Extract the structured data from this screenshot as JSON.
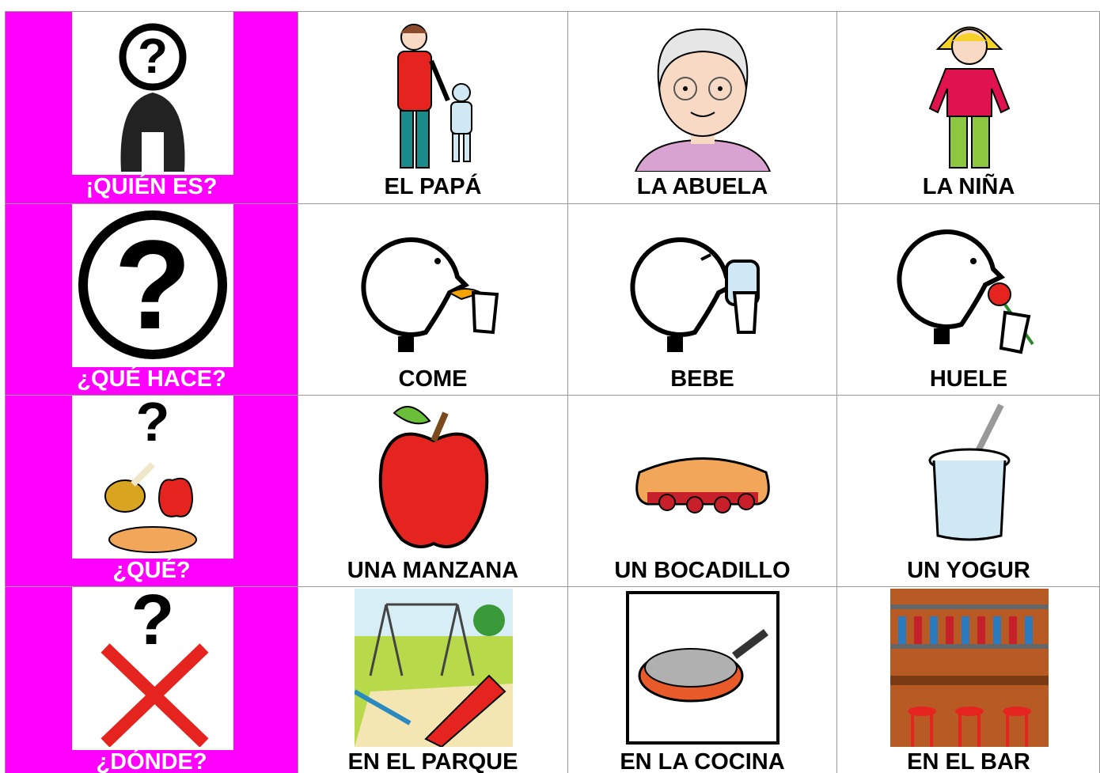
{
  "rows": [
    {
      "question": "¡QUIÉN ES?",
      "answers": [
        "EL PAPÁ",
        "LA ABUELA",
        "LA NIÑA"
      ]
    },
    {
      "question": "¿QUÉ HACE?",
      "answers": [
        "COME",
        "BEBE",
        "HUELE"
      ]
    },
    {
      "question": "¿QUÉ?",
      "answers": [
        "UNA MANZANA",
        "UN BOCADILLO",
        "UN YOGUR"
      ]
    },
    {
      "question": "¿DÓNDE?",
      "answers": [
        "EN EL PARQUE",
        "EN LA COCINA",
        "EN EL BAR"
      ]
    }
  ]
}
